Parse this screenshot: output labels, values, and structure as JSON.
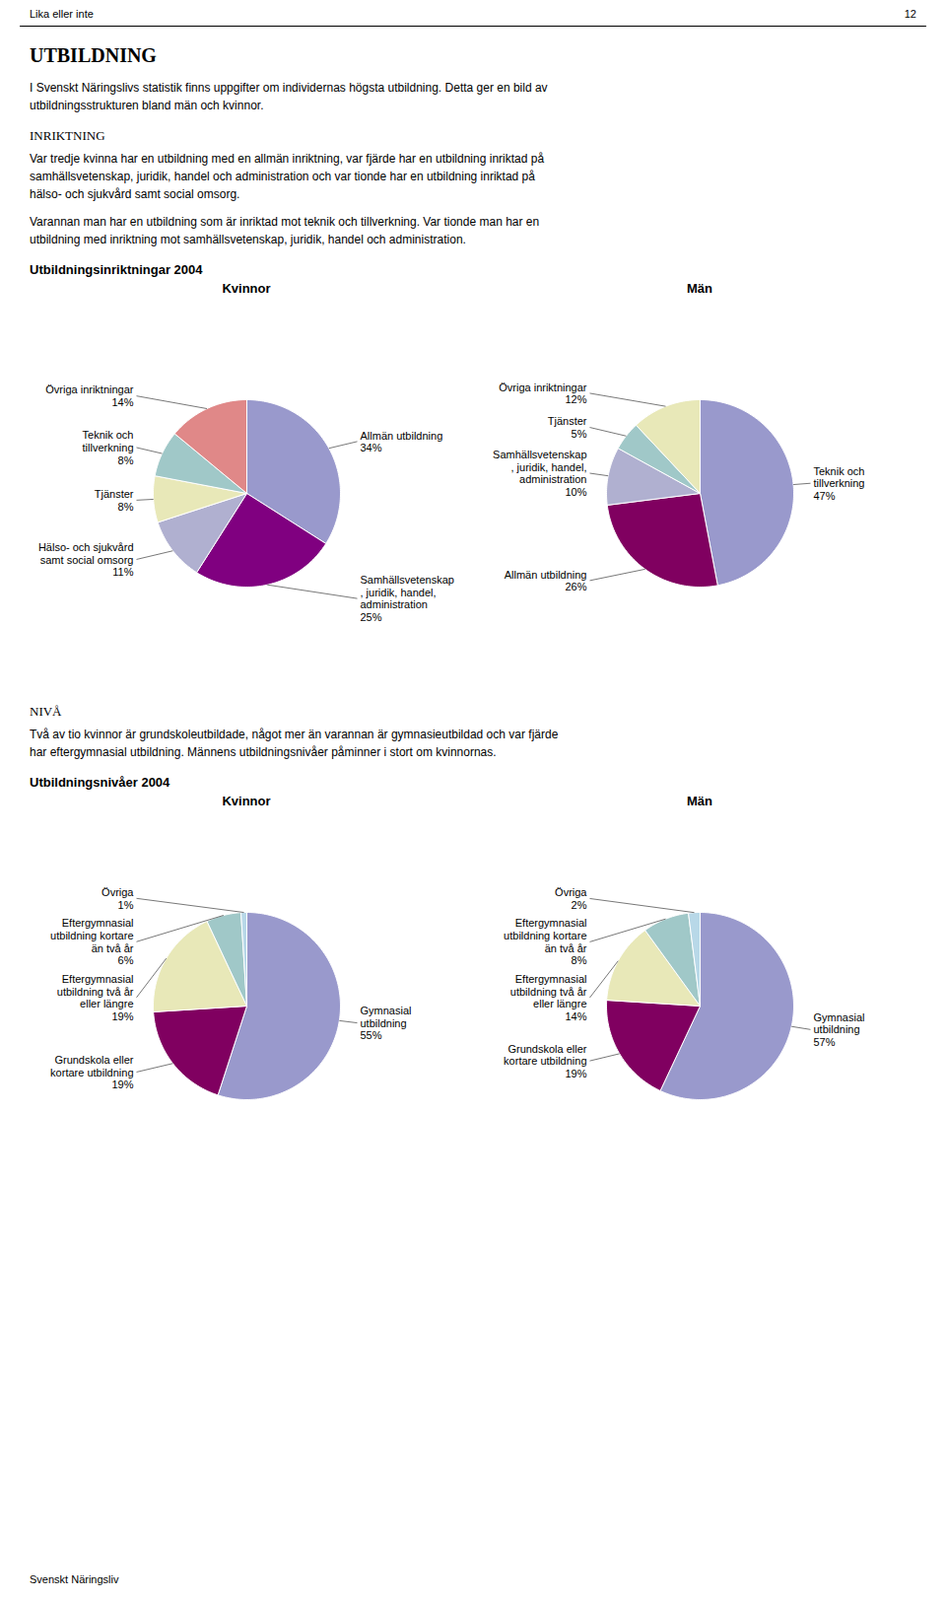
{
  "annotations": [
    "Lika eller inte",
    "12",
    "UTBILDNING",
    "I Svenskt Näringslivs statistik finns uppgifter om individernas högsta utbildning. Detta ger en bild av",
    "utbildningsstrukturen bland män och kvinnor.",
    "INRIKTNING",
    "Var tredje kvinna har en utbildning med en allmän inriktning, var fjärde har en utbildning inriktad på",
    "samhällsvetenskap, juridik, handel och administration och var tionde har en utbildning inriktad på",
    "hälso- och sjukvård samt social omsorg.",
    "Varannan man har en utbildning som är inriktad mot teknik och tillverkning. Var tionde man har en",
    "utbildning med inriktning mot samhällsvetenskap, juridik, handel och administration.",
    "Utbildningsinriktningar 2004",
    "NIVÅ",
    "Två av tio kvinnor är grundskoleutbildade, något mer än varannan är gymnasieutbildad och var fjärde",
    "har eftergymnasial utbildning. Männens utbildningsnivåer påminner i stort om kvinnornas.",
    "Utbildningsnivåer 2004",
    "Svenskt Näringsliv"
  ],
  "chart_data": [
    {
      "type": "pie",
      "title": "Kvinnor",
      "categories": [
        "Allmän utbildning",
        "Samhällsvetenskap\n, juridik, handel,\nadministration",
        "Hälso- och sjukvård\nsamt social omsorg",
        "Tjänster",
        "Teknik och\ntillverkning",
        "Övriga inriktningar"
      ],
      "values": [
        34,
        25,
        11,
        8,
        8,
        14
      ],
      "value_labels": [
        "34%",
        "25%",
        "11%",
        "8%",
        "8%",
        "14%"
      ],
      "colors": [
        "#9999cc",
        "#800080",
        "#b0b0d0",
        "#e8e8b8",
        "#a0c8c8",
        "#e08888"
      ],
      "data_labels": true
    },
    {
      "type": "pie",
      "title": "Män",
      "categories": [
        "Teknik och\ntillverkning",
        "Allmän utbildning",
        "Samhällsvetenskap\n, juridik, handel,\nadministration",
        "Tjänster",
        "Övriga inriktningar"
      ],
      "values": [
        47,
        26,
        10,
        5,
        12
      ],
      "value_labels": [
        "47%",
        "26%",
        "10%",
        "5%",
        "12%"
      ],
      "colors": [
        "#9999cc",
        "#800060",
        "#b0b0d0",
        "#a0c8c8",
        "#e8e8b8"
      ],
      "data_labels": true
    },
    {
      "type": "pie",
      "title": "Kvinnor",
      "categories": [
        "Gymnasial\nutbildning",
        "Grundskola eller\nkortare utbildning",
        "Eftergymnasial\nutbildning två år\neller längre",
        "Eftergymnasial\nutbildning kortare\nän två år",
        "Övriga"
      ],
      "values": [
        55,
        19,
        19,
        6,
        1
      ],
      "value_labels": [
        "55%",
        "19%",
        "19%",
        "6%",
        "1%"
      ],
      "colors": [
        "#9999cc",
        "#800060",
        "#e8e8b8",
        "#a0c8c8",
        "#b8d8e8"
      ],
      "data_labels": true
    },
    {
      "type": "pie",
      "title": "Män",
      "categories": [
        "Gymnasial\nutbildning",
        "Grundskola eller\nkortare utbildning",
        "Eftergymnasial\nutbildning två år\neller längre",
        "Eftergymnasial\nutbildning kortare\nän två år",
        "Övriga"
      ],
      "values": [
        57,
        19,
        14,
        8,
        2
      ],
      "value_labels": [
        "57%",
        "19%",
        "14%",
        "8%",
        "2%"
      ],
      "colors": [
        "#9999cc",
        "#800060",
        "#e8e8b8",
        "#a0c8c8",
        "#b8d8e8"
      ],
      "data_labels": true
    }
  ]
}
